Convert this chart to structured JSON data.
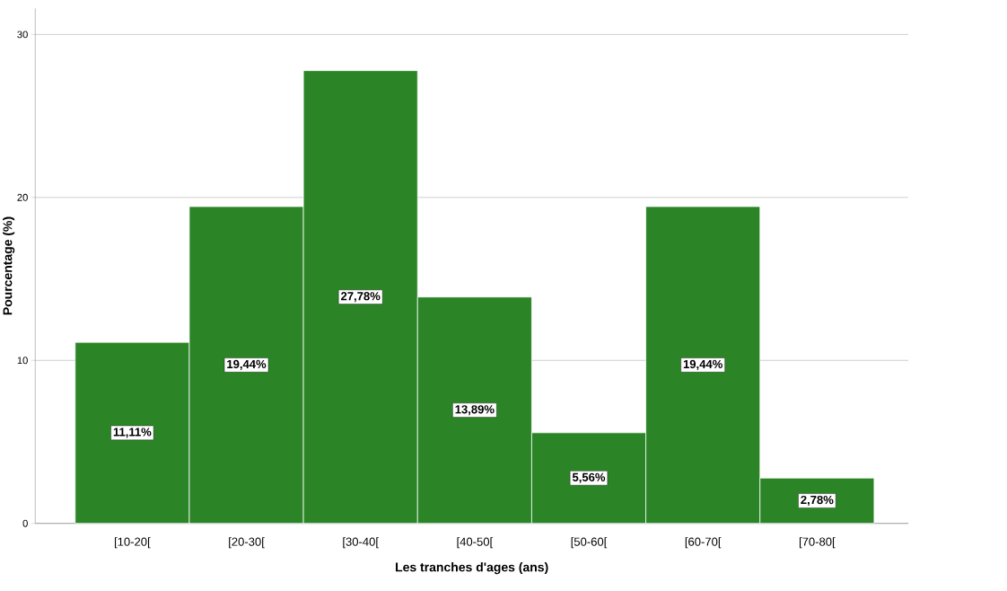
{
  "chart_data": {
    "type": "bar",
    "xlabel": "Les tranches d'ages (ans)",
    "ylabel": "Pourcentage (%)",
    "categories": [
      "[10-20[",
      "[20-30[",
      "[30-40[",
      "[40-50[",
      "[50-60[",
      "[60-70[",
      "[70-80["
    ],
    "values": [
      11.11,
      19.44,
      27.78,
      13.89,
      5.56,
      19.44,
      2.78
    ],
    "value_labels": [
      "11,11%",
      "19,44%",
      "27,78%",
      "13,89%",
      "5,56%",
      "19,44%",
      "2,78%"
    ],
    "color": "#2b8527",
    "ylim": [
      0,
      31.6
    ],
    "yticks": [
      0,
      10,
      20,
      30
    ],
    "grid": "y"
  }
}
